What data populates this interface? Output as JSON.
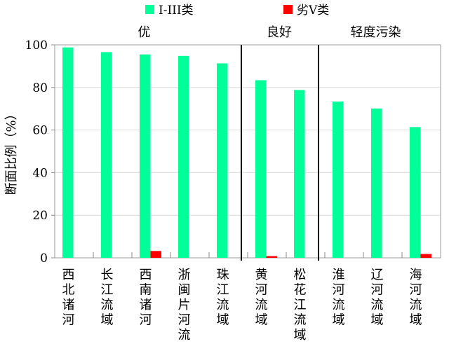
{
  "chart_data": {
    "type": "bar",
    "title": "",
    "xlabel": "",
    "ylabel": "断面比例（%）",
    "ylim": [
      0,
      100
    ],
    "yticks": [
      "0",
      "20",
      "40",
      "60",
      "80",
      "100"
    ],
    "grid": true,
    "legend_position": "top",
    "categories": [
      "西北诸河",
      "长江流域",
      "西南诸河",
      "浙闽片河流",
      "珠江流域",
      "黄河流域",
      "松花江流域",
      "淮河流域",
      "辽河流域",
      "海河流域"
    ],
    "series": [
      {
        "name": "I-III类",
        "color": "#00ff99",
        "values": [
          98.8,
          96.6,
          95.5,
          94.8,
          91.3,
          83.4,
          78.8,
          73.4,
          70.1,
          61.4
        ]
      },
      {
        "name": "劣V类",
        "color": "#ff0000",
        "values": [
          0,
          0,
          3.2,
          0,
          0,
          0.8,
          0,
          0,
          0,
          1.8
        ]
      }
    ],
    "groups": [
      {
        "label": "优",
        "from": 0,
        "to": 4
      },
      {
        "label": "良好",
        "from": 5,
        "to": 6
      },
      {
        "label": "轻度污染",
        "from": 7,
        "to": 9
      }
    ]
  }
}
